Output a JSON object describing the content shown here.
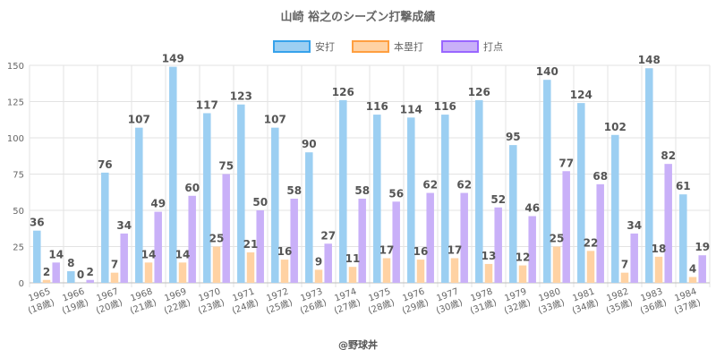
{
  "chart_data": {
    "type": "bar",
    "title": "山崎 裕之のシーズン打撃成績",
    "categories": [
      [
        "1965",
        "(18歳)"
      ],
      [
        "1966",
        "(19歳)"
      ],
      [
        "1967",
        "(20歳)"
      ],
      [
        "1968",
        "(21歳)"
      ],
      [
        "1969",
        "(22歳)"
      ],
      [
        "1970",
        "(23歳)"
      ],
      [
        "1971",
        "(24歳)"
      ],
      [
        "1972",
        "(25歳)"
      ],
      [
        "1973",
        "(26歳)"
      ],
      [
        "1974",
        "(27歳)"
      ],
      [
        "1975",
        "(28歳)"
      ],
      [
        "1976",
        "(29歳)"
      ],
      [
        "1977",
        "(30歳)"
      ],
      [
        "1978",
        "(31歳)"
      ],
      [
        "1979",
        "(32歳)"
      ],
      [
        "1980",
        "(33歳)"
      ],
      [
        "1981",
        "(34歳)"
      ],
      [
        "1982",
        "(35歳)"
      ],
      [
        "1983",
        "(36歳)"
      ],
      [
        "1984",
        "(37歳)"
      ]
    ],
    "series": [
      {
        "name": "安打",
        "fill": "#9ccff2",
        "stroke": "#36a2eb",
        "values": [
          36,
          8,
          76,
          107,
          149,
          117,
          123,
          107,
          90,
          126,
          116,
          114,
          116,
          126,
          95,
          140,
          124,
          102,
          148,
          61
        ]
      },
      {
        "name": "本塁打",
        "fill": "#ffd2a3",
        "stroke": "#ff9f40",
        "values": [
          2,
          0,
          7,
          14,
          14,
          25,
          21,
          16,
          9,
          11,
          17,
          16,
          17,
          13,
          12,
          25,
          22,
          7,
          18,
          4
        ]
      },
      {
        "name": "打点",
        "fill": "#c9b0f8",
        "stroke": "#9966ff",
        "values": [
          14,
          2,
          34,
          49,
          60,
          75,
          50,
          58,
          27,
          58,
          56,
          62,
          62,
          52,
          46,
          77,
          68,
          34,
          82,
          19
        ]
      }
    ],
    "ylim": [
      0,
      150
    ],
    "yticks": [
      0,
      25,
      50,
      75,
      100,
      125,
      150
    ],
    "grid": true,
    "legend_position": "top",
    "credit": "@野球丼"
  }
}
